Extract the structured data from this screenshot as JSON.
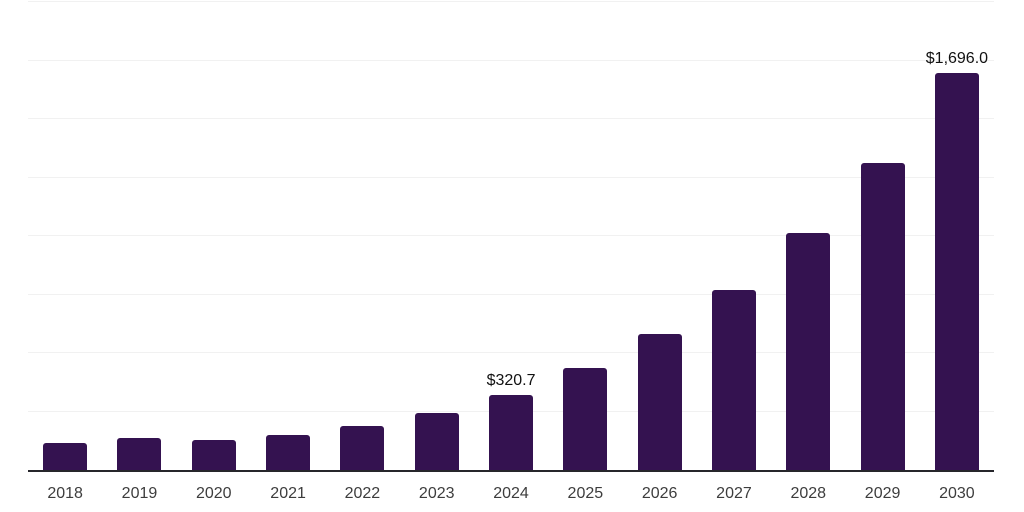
{
  "chart_data": {
    "type": "bar",
    "title": "",
    "xlabel": "",
    "ylabel": "",
    "legend": "none",
    "grid": "horizontal",
    "categories": [
      "2018",
      "2019",
      "2020",
      "2021",
      "2022",
      "2023",
      "2024",
      "2025",
      "2026",
      "2027",
      "2028",
      "2029",
      "2030"
    ],
    "values": [
      117,
      138,
      127,
      151,
      189,
      243,
      320.7,
      434,
      580,
      770,
      1011,
      1313,
      1696
    ],
    "data_labels": [
      "",
      "",
      "",
      "",
      "",
      "",
      "$320.7",
      "",
      "",
      "",
      "",
      "",
      "$1,696.0"
    ],
    "ylim": [
      0,
      2000
    ],
    "gridline_step": 250,
    "y_tick_labels_visible": false,
    "colors": {
      "bar": "#341250",
      "axis": "#26262b",
      "gridline": "#f1f1f1",
      "data_label": "#111111",
      "tick_label": "#3d3d3d",
      "background": "#ffffff"
    }
  }
}
